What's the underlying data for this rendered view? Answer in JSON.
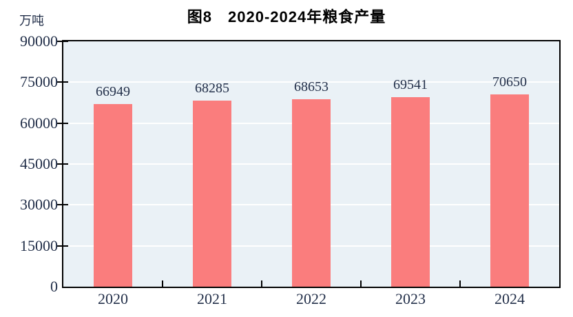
{
  "chart_data": {
    "type": "bar",
    "title": "图8　2020-2024年粮食产量",
    "unit_label": "万吨",
    "categories": [
      "2020",
      "2021",
      "2022",
      "2023",
      "2024"
    ],
    "values": [
      66949,
      68285,
      68653,
      69541,
      70650
    ],
    "data_labels": [
      "66949",
      "68285",
      "68653",
      "69541",
      "70650"
    ],
    "ylim": [
      0,
      90000
    ],
    "ytick_interval": 15000,
    "yticks": [
      0,
      15000,
      30000,
      45000,
      60000,
      75000,
      90000
    ],
    "ytick_labels": [
      "0",
      "15000",
      "30000",
      "45000",
      "60000",
      "75000",
      "90000"
    ],
    "legend": {
      "visible": false
    },
    "grid": {
      "horizontal": true,
      "vertical": false
    },
    "colors": {
      "bar": "#FA7D7D",
      "plot_background": "#EAF1F6",
      "gridline": "#FFFFFF",
      "axis": "#000000",
      "label_text": "#222F49",
      "title_text": "#000000",
      "page_background": "#FFFFFF"
    }
  }
}
